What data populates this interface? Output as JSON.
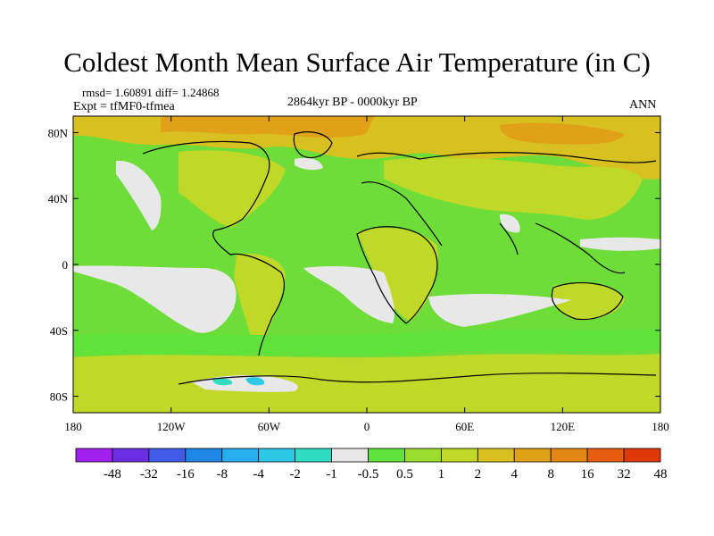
{
  "title": "Coldest Month Mean Surface Air Temperature (in C)",
  "stats": "rmsd= 1.60891 diff= 1.24868",
  "experiment": "Expt = tfMF0-tfmea",
  "period": "2864kyr BP - 0000kyr BP",
  "season": "ANN",
  "lat_ticks": [
    {
      "label": "80N",
      "lat": 80
    },
    {
      "label": "40N",
      "lat": 40
    },
    {
      "label": "0",
      "lat": 0
    },
    {
      "label": "40S",
      "lat": -40
    },
    {
      "label": "80S",
      "lat": -80
    }
  ],
  "lon_ticks": [
    {
      "label": "180",
      "lon": -180
    },
    {
      "label": "120W",
      "lon": -120
    },
    {
      "label": "60W",
      "lon": -60
    },
    {
      "label": "0",
      "lon": 0
    },
    {
      "label": "60E",
      "lon": 60
    },
    {
      "label": "120E",
      "lon": 120
    },
    {
      "label": "180",
      "lon": 180
    }
  ],
  "colorbar": {
    "colors": [
      "#a020f0",
      "#6a2de0",
      "#3f5be8",
      "#1e87e6",
      "#26aef0",
      "#2cc8e6",
      "#2fdcc4",
      "#e8e8e8",
      "#5fe23a",
      "#99dc2c",
      "#c0d828",
      "#d8c020",
      "#e0a018",
      "#e48614",
      "#e65c10",
      "#e03808"
    ],
    "labels": [
      "-48",
      "-32",
      "-16",
      "-8",
      "-4",
      "-2",
      "-1",
      "-0.5",
      "0.5",
      "1",
      "2",
      "4",
      "8",
      "16",
      "32",
      "48"
    ]
  }
}
